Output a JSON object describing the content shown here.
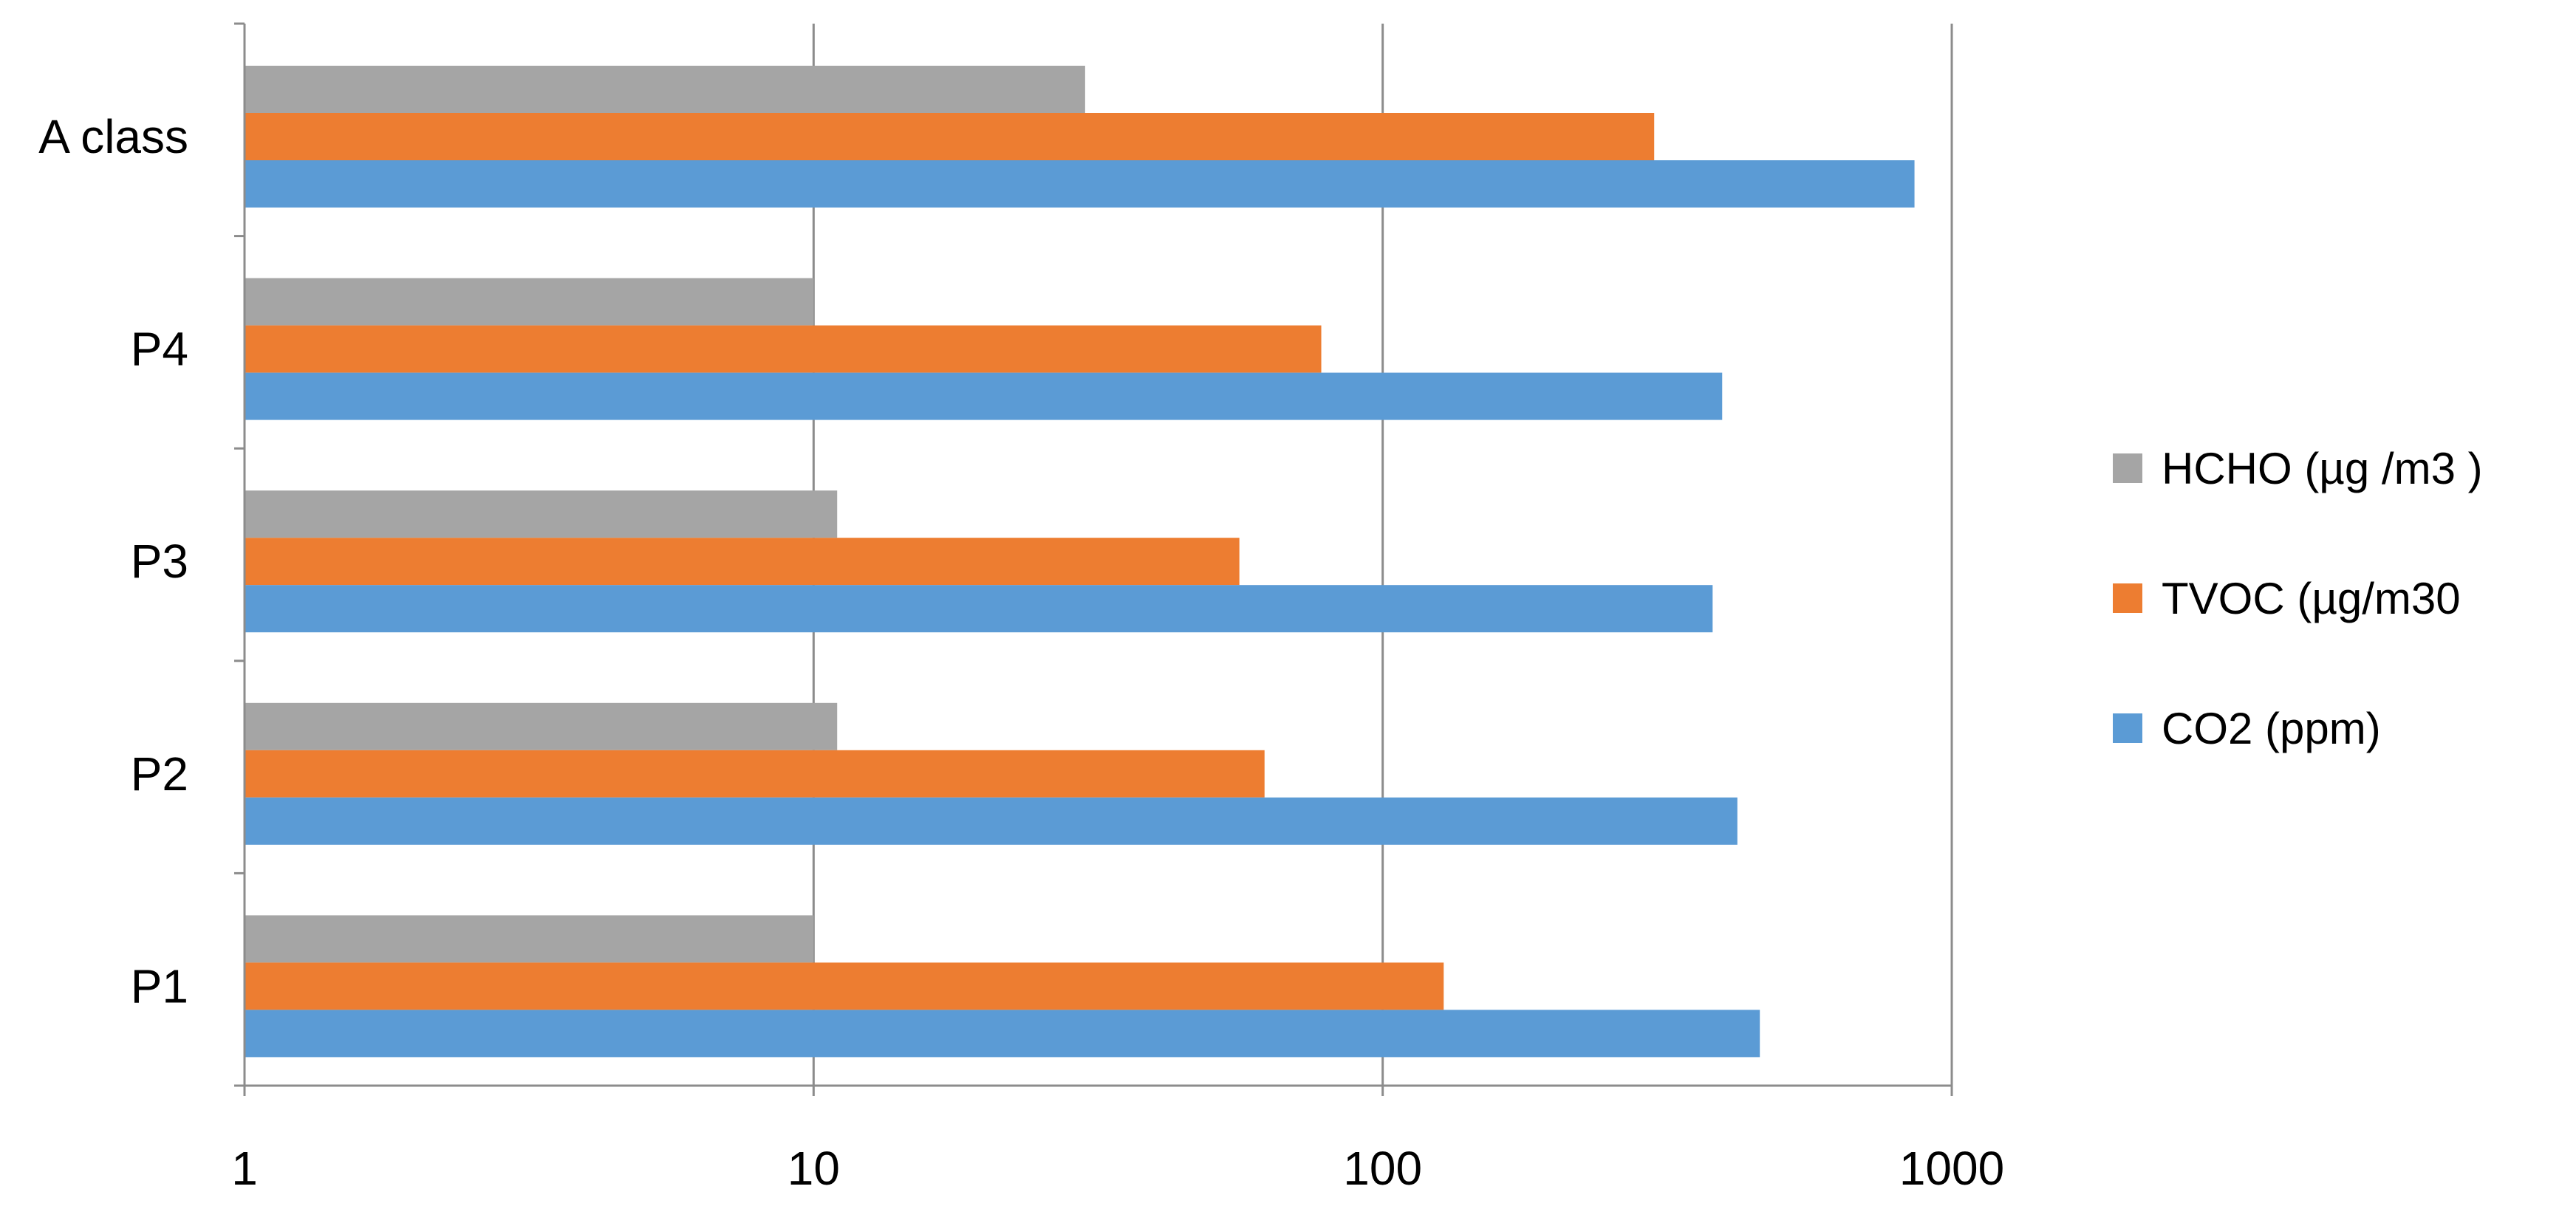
{
  "chart_data": {
    "type": "bar",
    "orientation": "horizontal",
    "x_scale": "log",
    "xlim": [
      1,
      1000
    ],
    "x_ticks": [
      "1",
      "10",
      "100",
      "1000"
    ],
    "grid": "vertical major gridlines",
    "legend_position": "right",
    "categories": [
      "P1",
      "P2",
      "P3",
      "P4",
      "A class"
    ],
    "series": [
      {
        "name": "HCHO (µg /m3 )",
        "color": "#a5a5a5",
        "values": [
          10,
          11,
          11,
          10,
          30
        ]
      },
      {
        "name": "TVOC (µg/m30",
        "color": "#ed7d31",
        "values": [
          128,
          62,
          56,
          78,
          300
        ]
      },
      {
        "name": "CO2 (ppm)",
        "color": "#5b9bd5",
        "values": [
          460,
          420,
          380,
          395,
          860
        ]
      }
    ]
  }
}
